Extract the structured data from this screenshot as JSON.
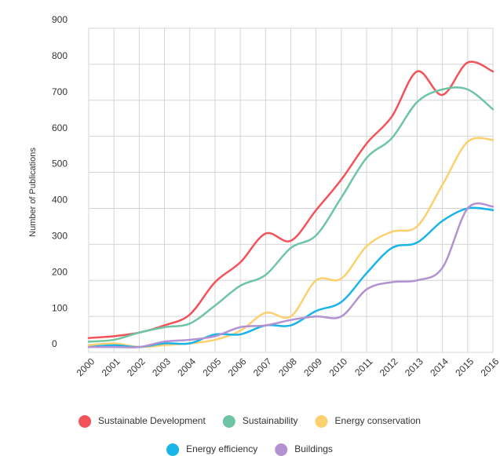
{
  "chart_data": {
    "type": "line",
    "y_label": "Number of Publications",
    "categories": [
      "2000",
      "2001",
      "2002",
      "2003",
      "2004",
      "2005",
      "2006",
      "2007",
      "2008",
      "2009",
      "2010",
      "2011",
      "2012",
      "2013",
      "2014",
      "2015",
      "2016"
    ],
    "ylim": [
      0,
      900
    ],
    "yticks": [
      0,
      100,
      200,
      300,
      400,
      500,
      600,
      700,
      800,
      900
    ],
    "grid": true,
    "series": [
      {
        "name": "Sustainable Development",
        "color": "#f4525a",
        "values": [
          40,
          45,
          55,
          75,
          105,
          195,
          250,
          330,
          310,
          395,
          480,
          580,
          655,
          780,
          715,
          805,
          780
        ]
      },
      {
        "name": "Sustainability",
        "color": "#6ec5a3",
        "values": [
          30,
          35,
          55,
          70,
          80,
          130,
          185,
          215,
          290,
          325,
          430,
          540,
          595,
          695,
          730,
          730,
          675
        ]
      },
      {
        "name": "Energy conservation",
        "color": "#fdd06e",
        "values": [
          20,
          25,
          15,
          20,
          25,
          35,
          60,
          110,
          100,
          200,
          205,
          295,
          335,
          350,
          465,
          585,
          590
        ]
      },
      {
        "name": "Energy efficiency",
        "color": "#19b4e8",
        "values": [
          15,
          20,
          15,
          25,
          25,
          50,
          50,
          75,
          75,
          115,
          140,
          220,
          290,
          305,
          365,
          400,
          395
        ]
      },
      {
        "name": "Buildings",
        "color": "#b392d1",
        "values": [
          15,
          15,
          15,
          30,
          35,
          45,
          70,
          75,
          90,
          100,
          100,
          175,
          195,
          200,
          235,
          400,
          405
        ]
      }
    ]
  }
}
